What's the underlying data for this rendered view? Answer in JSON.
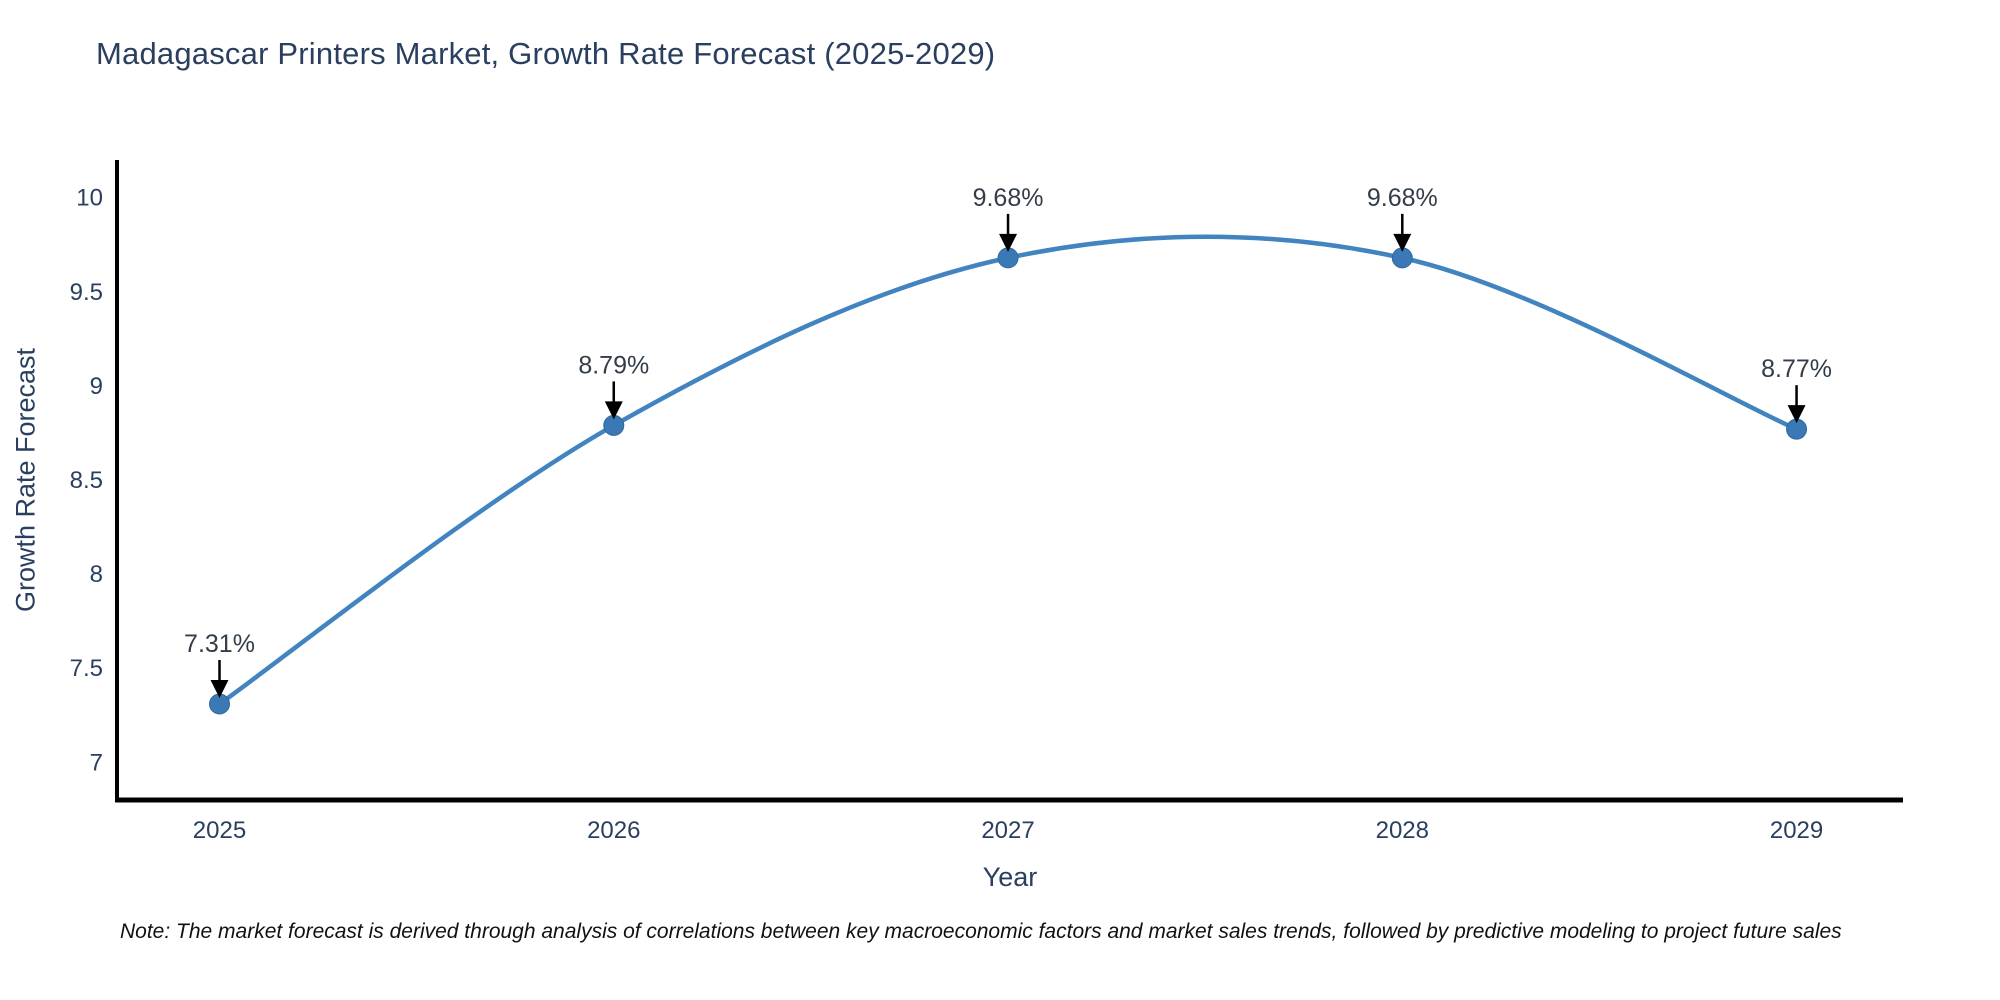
{
  "note": "Note: The market forecast is derived through analysis of correlations between key macroeconomic factors and market sales trends, followed by predictive modeling to project future sales",
  "chart_data": {
    "type": "line",
    "title": "Madagascar Printers Market, Growth Rate Forecast (2025-2029)",
    "xlabel": "Year",
    "ylabel": "Growth Rate Forecast",
    "x": [
      2025,
      2026,
      2027,
      2028,
      2029
    ],
    "values": [
      7.31,
      8.79,
      9.68,
      9.68,
      8.77
    ],
    "point_labels": [
      "7.31%",
      "8.79%",
      "9.68%",
      "9.68%",
      "8.77%"
    ],
    "xticks": [
      "2025",
      "2026",
      "2027",
      "2028",
      "2029"
    ],
    "yticks": [
      7,
      7.5,
      8,
      8.5,
      9,
      9.5,
      10
    ],
    "xlim": [
      2024.74,
      2029.27
    ],
    "ylim": [
      6.8,
      10.2
    ],
    "line_shape": "spline",
    "grid": false,
    "legend": "none",
    "colors": {
      "line": "#4184bf",
      "marker": "#3a79b5",
      "marker_edge": "#31689e",
      "axis_line": "#000000",
      "tick_text": "#2a3f5f",
      "annotation_text": "#333d49",
      "arrow": "#000000",
      "title_text": "#2a3f5f",
      "background": "#ffffff"
    }
  }
}
